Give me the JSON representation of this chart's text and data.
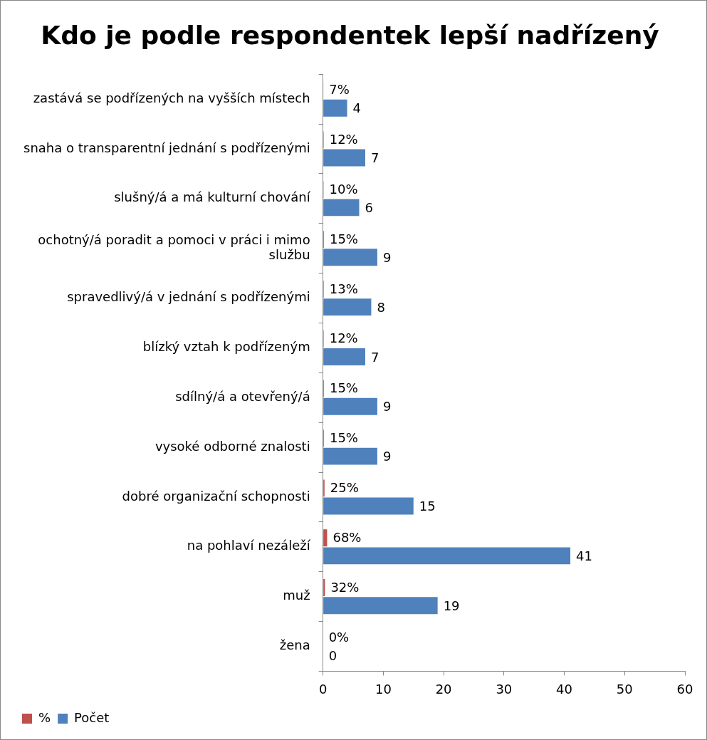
{
  "chart_data": {
    "type": "bar",
    "orientation": "horizontal",
    "title": "Kdo je podle respondentek lepší nadřízený",
    "categories": [
      "zastává se podřízených na vyšších místech",
      "snaha o transparentní jednání s podřízenými",
      "slušný/á a má kulturní chování",
      "ochotný/á poradit a pomoci v práci i mimo službu",
      "spravedlivý/á v jednání s podřízenými",
      "blízký vztah k podřízeným",
      "sdílný/á a otevřený/á",
      "vysoké odborné znalosti",
      "dobré organizační schopnosti",
      "na pohlaví nezáleží",
      "muž",
      "žena"
    ],
    "series": [
      {
        "name": "%",
        "color": "#c0504d",
        "values": [
          0.07,
          0.12,
          0.1,
          0.15,
          0.13,
          0.12,
          0.15,
          0.15,
          0.25,
          0.68,
          0.32,
          0
        ],
        "value_labels": [
          "7%",
          "12%",
          "10%",
          "15%",
          "13%",
          "12%",
          "15%",
          "15%",
          "25%",
          "68%",
          "32%",
          "0%"
        ]
      },
      {
        "name": "Počet",
        "color": "#4f81bd",
        "values": [
          4,
          7,
          6,
          9,
          8,
          7,
          9,
          9,
          15,
          41,
          19,
          0
        ],
        "value_labels": [
          "4",
          "7",
          "6",
          "9",
          "8",
          "7",
          "9",
          "9",
          "15",
          "41",
          "19",
          "0"
        ]
      }
    ],
    "xlim": [
      0,
      60
    ],
    "xticks": [
      0,
      10,
      20,
      30,
      40,
      50,
      60
    ],
    "grid": false,
    "legend": "bottom left"
  }
}
